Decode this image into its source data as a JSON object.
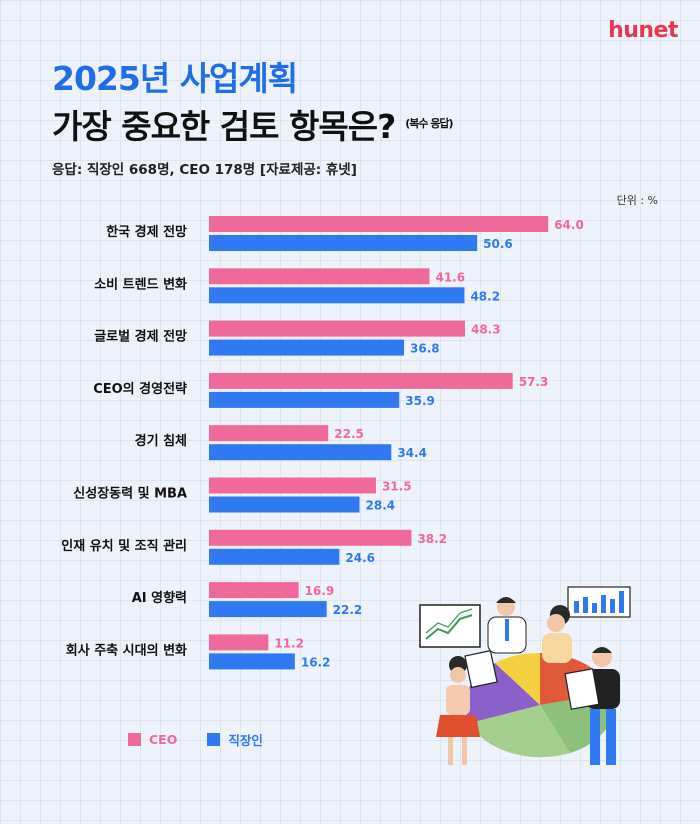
{
  "brand": {
    "logo": "hunet"
  },
  "header": {
    "title_line1": "2025년 사업계획",
    "title_line2": "가장 중요한 검토 항목은?",
    "title_note": "(복수 응답)",
    "subtitle": "응답: 직장인 668명, CEO 178명 [자료제공: 휴넷]",
    "unit": "단위 : %"
  },
  "colors": {
    "ceo": "#f0699b",
    "worker": "#2f7af0",
    "title_accent": "#1f6ee8",
    "logo": "#e8384f"
  },
  "chart_data": {
    "type": "bar",
    "orientation": "horizontal",
    "categories": [
      "한국 경제 전망",
      "소비 트렌드 변화",
      "글로벌 경제 전망",
      "CEO의 경영전략",
      "경기 침체",
      "신성장동력 및 MBA",
      "인재 유치 및 조직 관리",
      "AI 영향력",
      "회사 주축 시대의 변화"
    ],
    "series": [
      {
        "name": "CEO",
        "values": [
          64.0,
          41.6,
          48.3,
          57.3,
          22.5,
          31.5,
          38.2,
          16.9,
          11.2
        ]
      },
      {
        "name": "직장인",
        "values": [
          50.6,
          48.2,
          36.8,
          35.9,
          34.4,
          28.4,
          24.6,
          22.2,
          16.2
        ]
      }
    ],
    "xlim": [
      0,
      70
    ],
    "grid": false,
    "legend_position": "bottom-left",
    "data_labels": true
  },
  "legend": [
    {
      "label": "CEO",
      "color_key": "ceo"
    },
    {
      "label": "직장인",
      "color_key": "worker"
    }
  ]
}
